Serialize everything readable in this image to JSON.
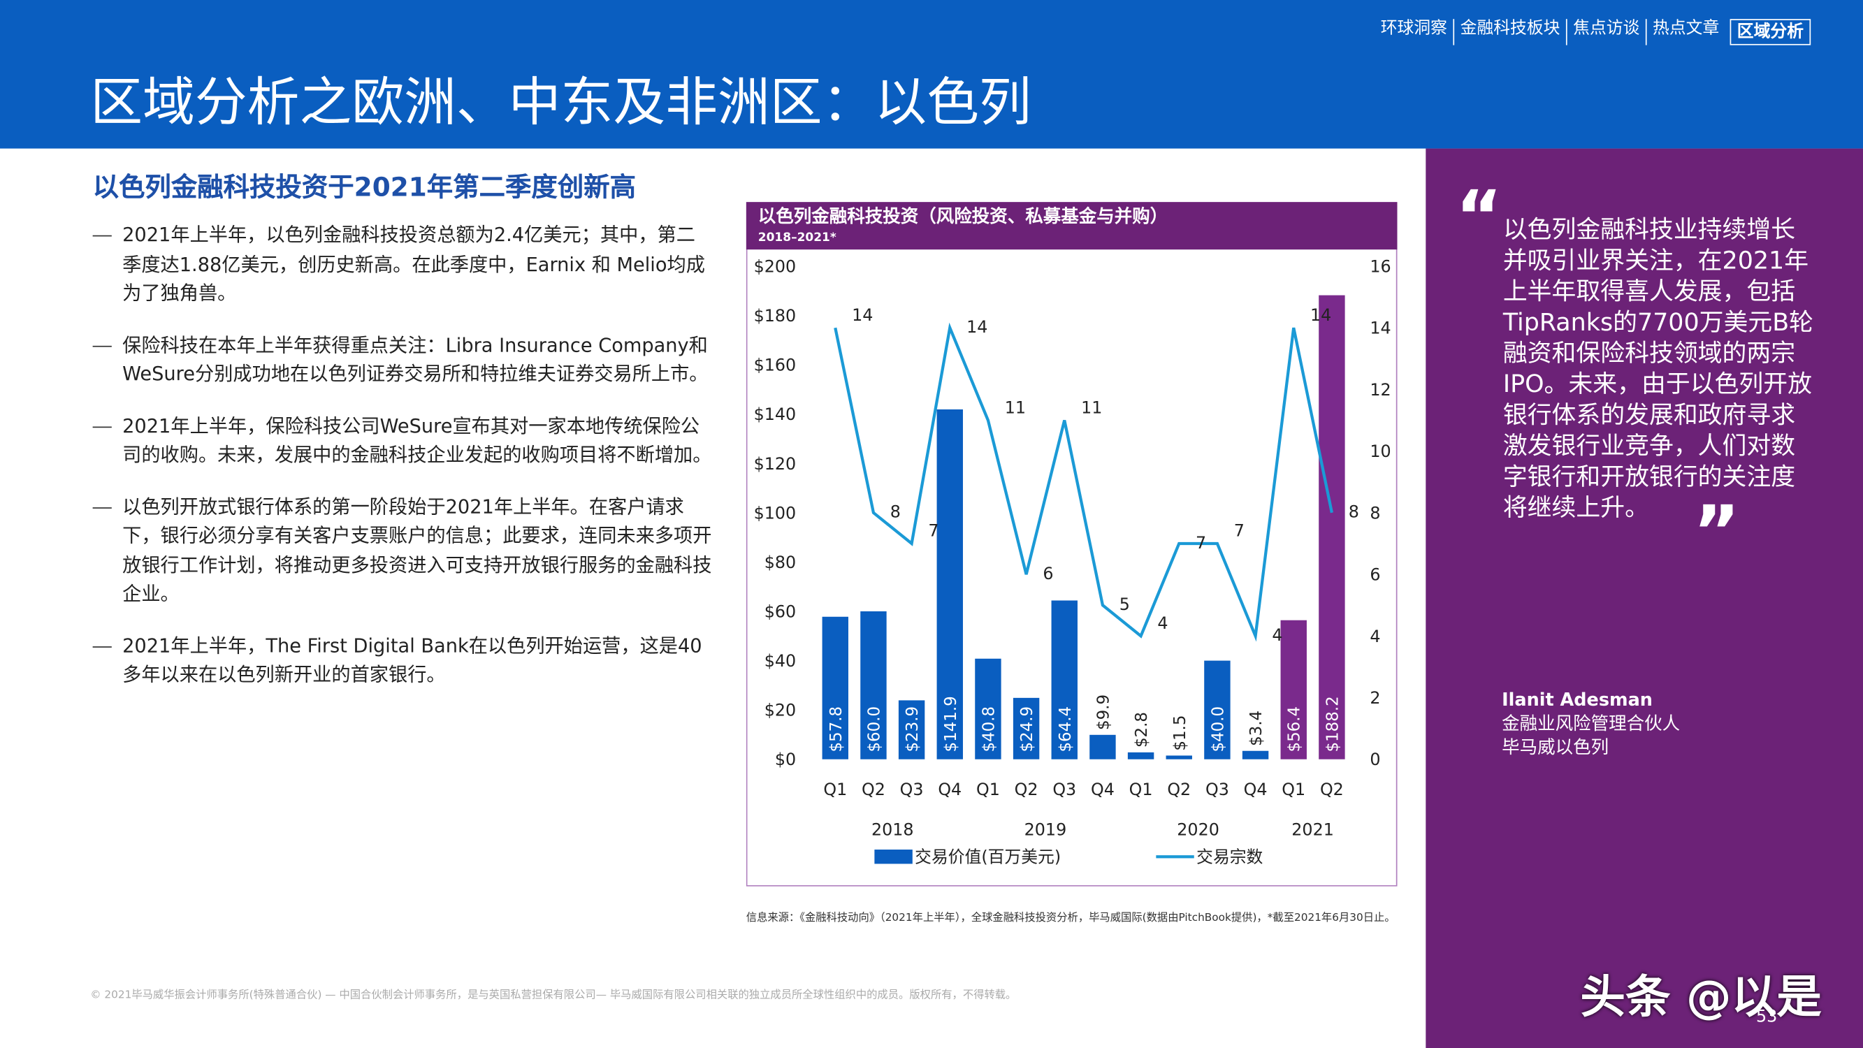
{
  "header": {
    "nav": [
      "环球洞察",
      "金融科技板块",
      "焦点访谈",
      "热点文章",
      "区域分析"
    ],
    "title": "区域分析之欧洲、中东及非洲区：以色列"
  },
  "section": {
    "heading": "以色列金融科技投资于2021年第二季度创新高",
    "bullets": [
      "2021年上半年，以色列金融科技投资总额为2.4亿美元；其中，第二季度达1.88亿美元，创历史新高。在此季度中，Earnix 和 Melio均成为了独角兽。",
      "保险科技在本年上半年获得重点关注：Libra Insurance Company和WeSure分别成功地在以色列证券交易所和特拉维夫证券交易所上市。",
      "2021年上半年，保险科技公司WeSure宣布其对一家本地传统保险公司的收购。未来，发展中的金融科技企业发起的收购项目将不断增加。",
      "以色列开放式银行体系的第一阶段始于2021年上半年。在客户请求下，银行必须分享有关客户支票账户的信息；此要求，连同未来多项开放银行工作计划，将推动更多投资进入可支持开放银行服务的金融科技企业。",
      "2021年上半年，The First Digital Bank在以色列开始运营，这是40多年以来在以色列新开业的首家银行。"
    ]
  },
  "chart_data": {
    "type": "bar-line",
    "title": "以色列金融科技投资（风险投资、私募基金与并购）",
    "subtitle": "2018–2021*",
    "categories": [
      "Q1",
      "Q2",
      "Q3",
      "Q4",
      "Q1",
      "Q2",
      "Q3",
      "Q4",
      "Q1",
      "Q2",
      "Q3",
      "Q4",
      "Q1",
      "Q2"
    ],
    "x_groups": [
      "2018",
      "2019",
      "2020",
      "2021"
    ],
    "series": [
      {
        "name": "交易价值(百万美元)",
        "type": "bar",
        "color": "#0a5ec0",
        "colors": [
          "#0a5ec0",
          "#0a5ec0",
          "#0a5ec0",
          "#0a5ec0",
          "#0a5ec0",
          "#0a5ec0",
          "#0a5ec0",
          "#0a5ec0",
          "#0a5ec0",
          "#0a5ec0",
          "#0a5ec0",
          "#0a5ec0",
          "#7a2a8c",
          "#7a2a8c"
        ],
        "values": [
          57.8,
          60.0,
          23.9,
          141.9,
          40.8,
          24.9,
          64.4,
          9.9,
          2.8,
          1.5,
          40.0,
          3.4,
          56.4,
          188.2
        ],
        "value_labels": [
          "$57.8",
          "$60.0",
          "$23.9",
          "$141.9",
          "$40.8",
          "$24.9",
          "$64.4",
          "$9.9",
          "$2.8",
          "$1.5",
          "$40.0",
          "$3.4",
          "$56.4",
          "$188.2"
        ]
      },
      {
        "name": "交易宗数",
        "type": "line",
        "axis": "y2",
        "color": "#1b9ad6",
        "values": [
          14,
          8,
          7,
          14,
          11,
          6,
          11,
          5,
          4,
          7,
          7,
          4,
          14,
          8
        ]
      }
    ],
    "ylim": [
      0,
      200
    ],
    "yticks": [
      {
        "value": 0,
        "label": "$0"
      },
      {
        "value": 20,
        "label": "$20"
      },
      {
        "value": 40,
        "label": "$40"
      },
      {
        "value": 60,
        "label": "$60"
      },
      {
        "value": 80,
        "label": "$80"
      },
      {
        "value": 100,
        "label": "$100"
      },
      {
        "value": 120,
        "label": "$120"
      },
      {
        "value": 140,
        "label": "$140"
      },
      {
        "value": 160,
        "label": "$160"
      },
      {
        "value": 180,
        "label": "$180"
      },
      {
        "value": 200,
        "label": "$200"
      }
    ],
    "y2lim": [
      0,
      16
    ],
    "y2ticks": [
      0,
      2,
      4,
      6,
      8,
      10,
      12,
      14,
      16
    ],
    "source": "信息来源：《金融科技动向》（2021年上半年），全球金融科技投资分析，毕马威国际(数据由PitchBook提供)，*截至2021年6月30日止。"
  },
  "quote": {
    "text": "以色列金融科技业持续增长并吸引业界关注，在2021年上半年取得喜人发展，包括TipRanks的7700万美元B轮融资和保险科技领域的两宗IPO。未来，由于以色列开放银行体系的发展和政府寻求激发银行业竞争，人们对数字银行和开放银行的关注度将继续上升。",
    "open": "“",
    "close": "”",
    "name": "Ilanit Adesman",
    "role": "金融业风险管理合伙人",
    "org": "毕马威以色列"
  },
  "footer": {
    "copyright": "© 2021毕马威华振会计师事务所(特殊普通合伙) — 中国合伙制会计师事务所，是与英国私营担保有限公司— 毕马威国际有限公司相关联的独立成员所全球性组织中的成员。版权所有，不得转载。",
    "page": "53",
    "watermark": "头条 @以是"
  }
}
